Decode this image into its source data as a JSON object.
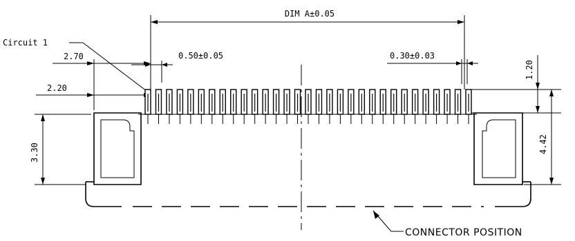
{
  "labels": {
    "dim_a": "DIM A±0.05",
    "pitch": "0.50±0.05",
    "pin_width": "0.30±0.03",
    "circuit_1": "Circuit 1",
    "dim_2_70": "2.70",
    "dim_2_20": "2.20",
    "dim_3_30": "3.30",
    "dim_1_20": "1.20",
    "dim_4_42": "4.42",
    "connector_position": "CONNECTOR POSITION"
  }
}
